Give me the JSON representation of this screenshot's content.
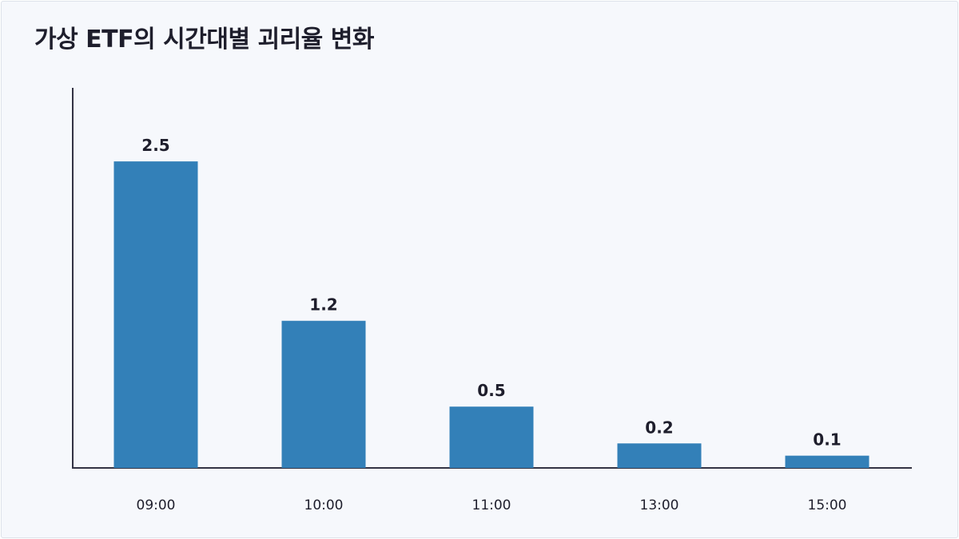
{
  "chart_data": {
    "type": "bar",
    "title": "가상 ETF의 시간대별 괴리율 변화",
    "categories": [
      "09:00",
      "10:00",
      "11:00",
      "13:00",
      "15:00"
    ],
    "values": [
      2.5,
      1.2,
      0.5,
      0.2,
      0.1
    ],
    "xlabel": "",
    "ylabel": "",
    "ylim": [
      0,
      3.1
    ],
    "grid": false,
    "legend": "none",
    "bar_color": "#3380b8",
    "axis_color": "#333344"
  }
}
